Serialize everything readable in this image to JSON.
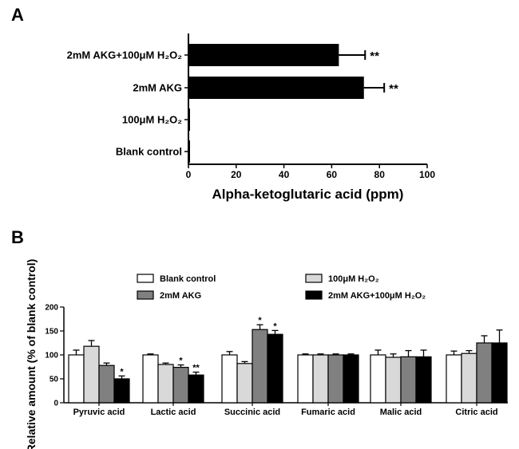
{
  "chart_data": [
    {
      "panel": "A",
      "type": "bar",
      "orientation": "horizontal",
      "categories": [
        "2mM AKG+100μM H₂O₂",
        "2mM AKG",
        "100μM H₂O₂",
        "Blank control"
      ],
      "values": [
        63,
        73.5,
        0.6,
        0.6
      ],
      "errors": [
        11,
        8.5,
        0,
        0
      ],
      "annotations": [
        "**",
        "**",
        "",
        ""
      ],
      "xlabel": "Alpha-ketoglutaric acid (ppm)",
      "ylabel": "",
      "xlim": [
        0,
        100
      ],
      "xticks": [
        0,
        20,
        40,
        60,
        80,
        100
      ],
      "colors": {
        "bar": "#000000"
      },
      "grid": false
    },
    {
      "panel": "B",
      "type": "bar",
      "orientation": "vertical",
      "categories": [
        "Pyruvic acid",
        "Lactic acid",
        "Succinic acid",
        "Fumaric acid",
        "Malic acid",
        "Citric acid"
      ],
      "series": [
        {
          "name": "Blank control",
          "color": "#ffffff",
          "values": [
            100,
            100,
            100,
            100,
            100,
            100
          ],
          "errors": [
            10,
            2,
            7,
            2,
            10,
            8
          ],
          "annotations": [
            "",
            "",
            "",
            "",
            "",
            ""
          ]
        },
        {
          "name": "100μM H₂O₂",
          "color": "#d9d9d9",
          "values": [
            118,
            80,
            82,
            100,
            95,
            103
          ],
          "errors": [
            12,
            3,
            4,
            2,
            7,
            6
          ],
          "annotations": [
            "",
            "",
            "",
            "",
            "",
            ""
          ]
        },
        {
          "name": "2mM AKG",
          "color": "#808080",
          "values": [
            78,
            74,
            153,
            100,
            96,
            125
          ],
          "errors": [
            5,
            5,
            10,
            2,
            13,
            15
          ],
          "annotations": [
            "",
            "*",
            "*",
            "",
            "",
            ""
          ]
        },
        {
          "name": "2mM AKG+100μM H₂O₂",
          "color": "#000000",
          "values": [
            50,
            58,
            143,
            100,
            96,
            125
          ],
          "errors": [
            6,
            6,
            8,
            2,
            14,
            27
          ],
          "annotations": [
            "*",
            "**",
            "*",
            "",
            "",
            ""
          ]
        }
      ],
      "ylabel": "Relative amount (% of blank control)",
      "xlabel": "",
      "ylim": [
        0,
        200
      ],
      "yticks": [
        0,
        50,
        100,
        150,
        200
      ],
      "legend_placement": "top",
      "grid": false
    }
  ],
  "panel_labels": [
    "A",
    "B"
  ]
}
